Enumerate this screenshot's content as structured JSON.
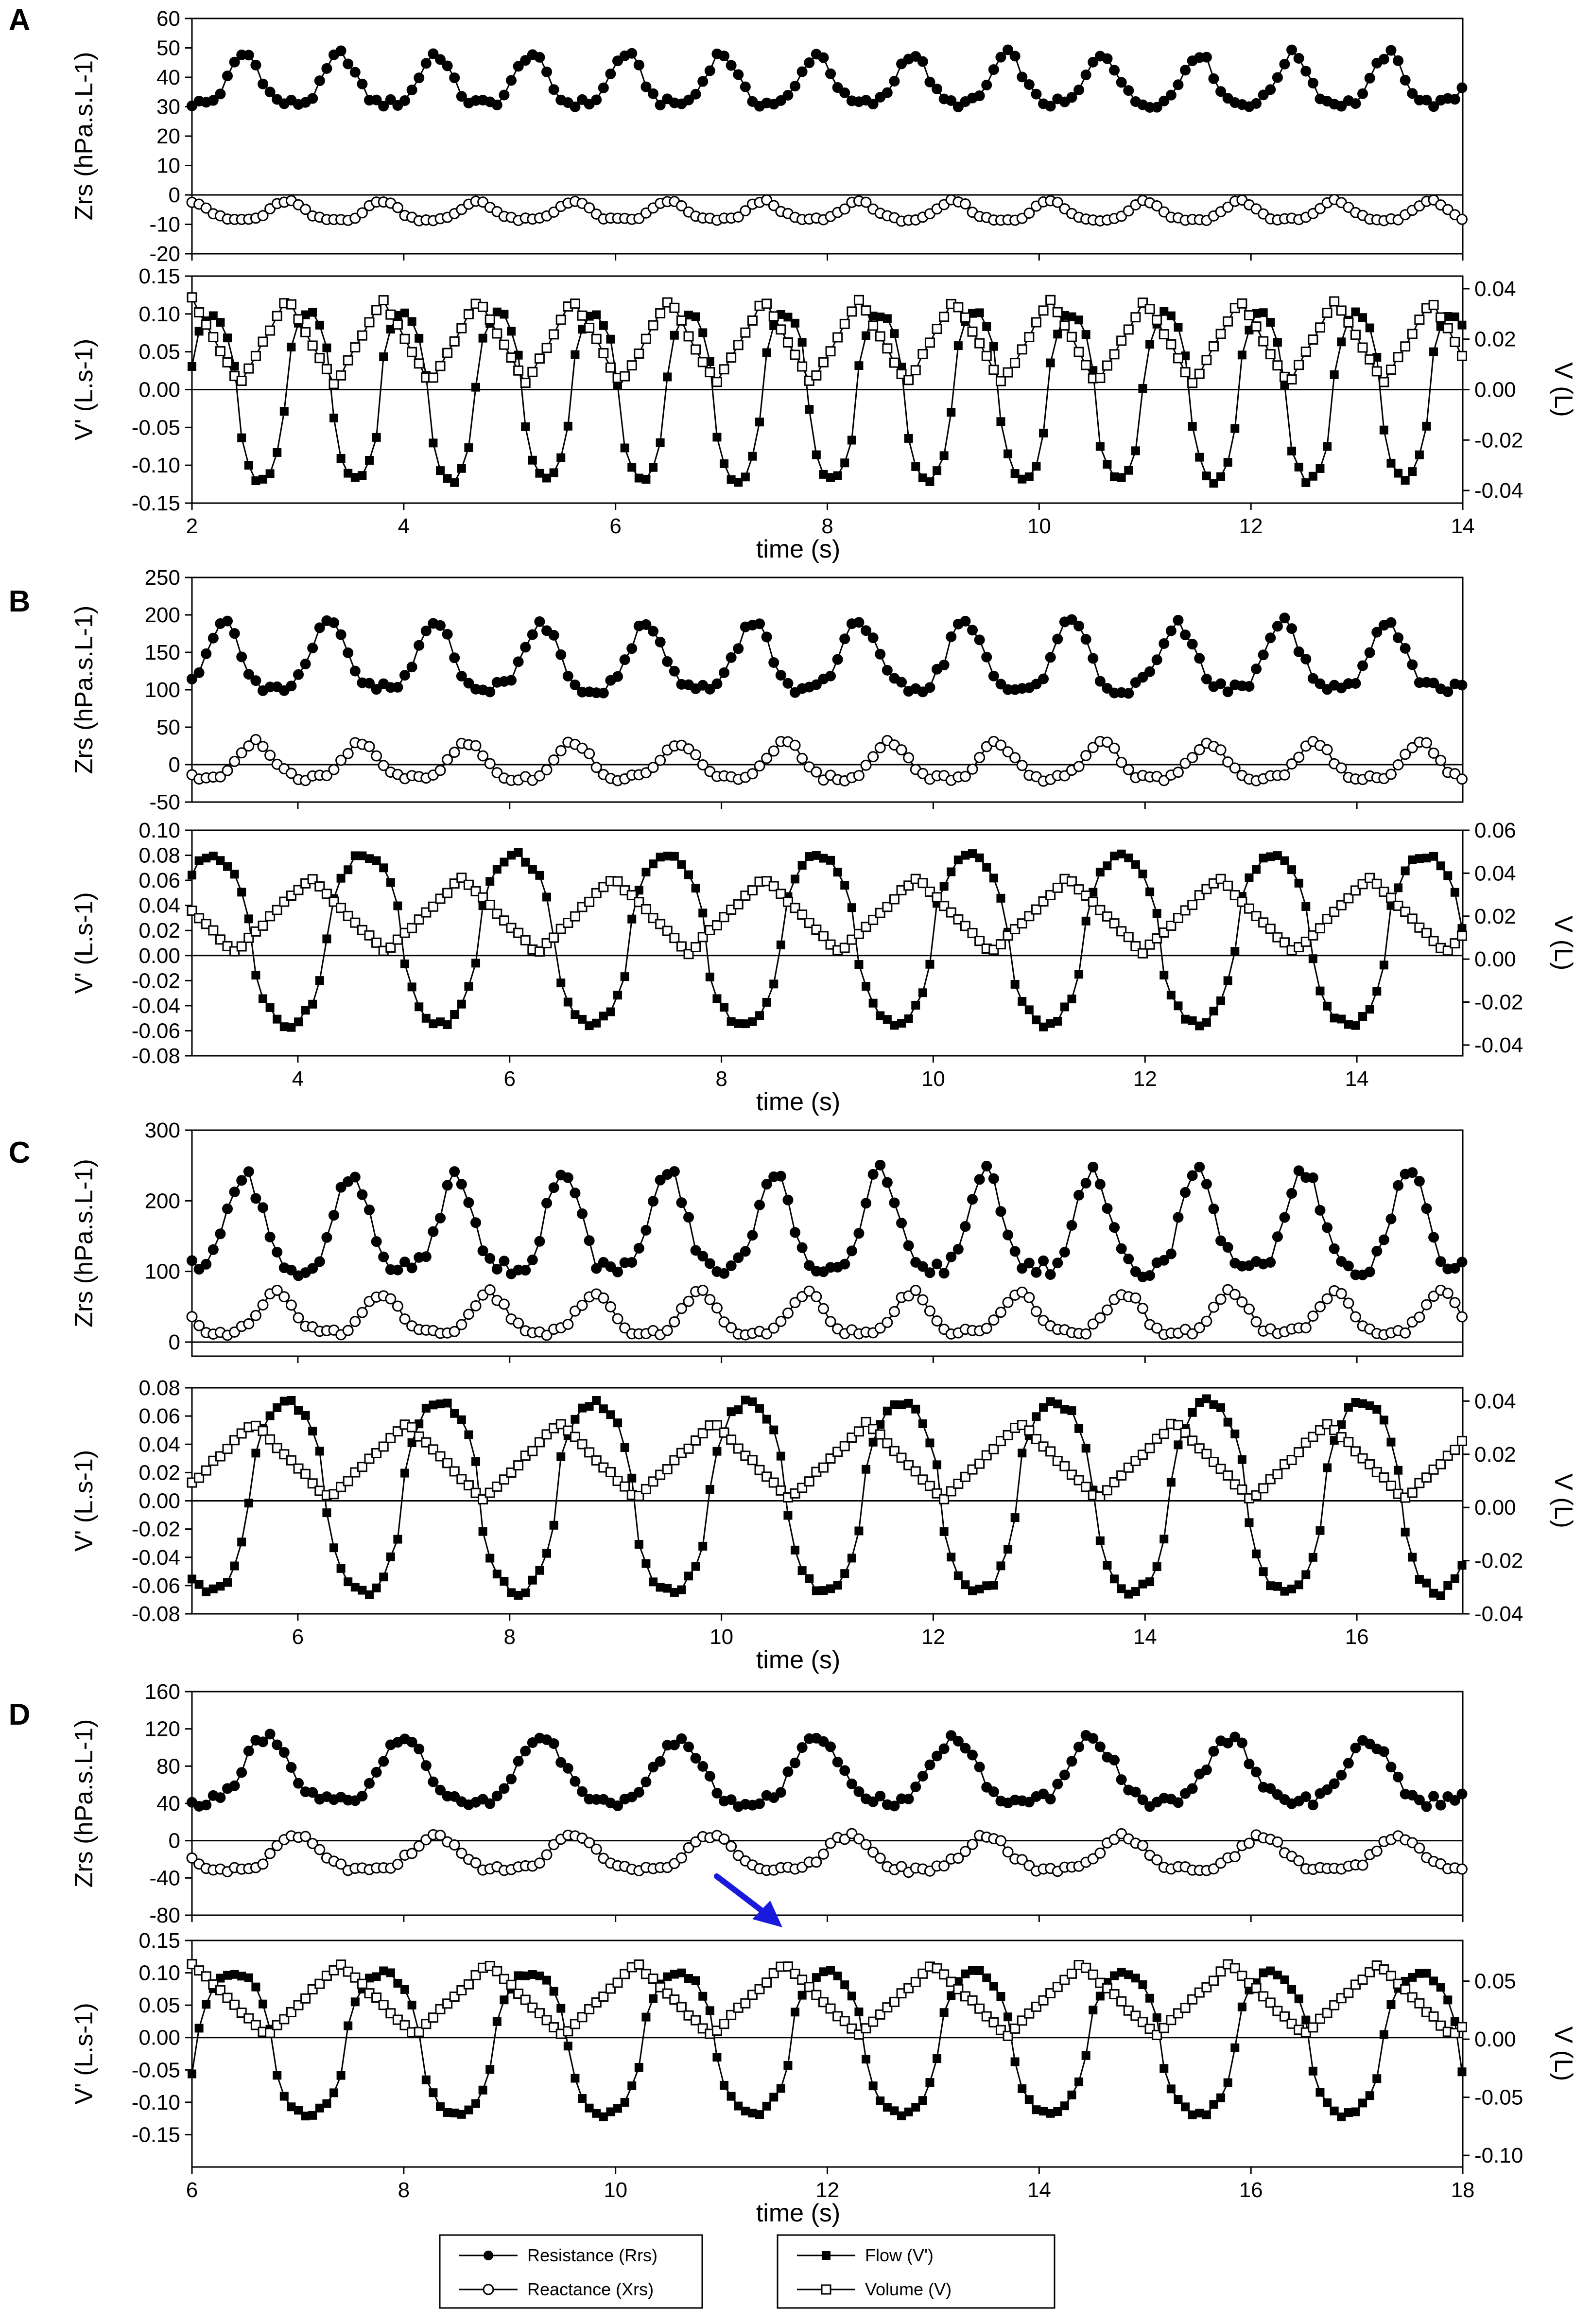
{
  "figure": {
    "panel_letters": [
      "A",
      "B",
      "C",
      "D"
    ]
  },
  "labels": {
    "zrs_ylabel": "Zrs (hPa.s.L-1)",
    "flow_ylabel": "V' (L.s-1)",
    "volume_ylabel": "V (L)",
    "xlabel": "time (s)"
  },
  "legend": {
    "resistance": "Resistance (Rrs)",
    "reactance": "Reactance (Xrs)",
    "flow": "Flow (V')",
    "volume": "Volume (V)"
  },
  "annotation": {
    "type": "arrow",
    "color": "#1a1adc",
    "panel": "D",
    "points_to_time_s": 11.5
  },
  "chart_data": [
    {
      "panel": "A",
      "type": "line",
      "subplot": "impedance",
      "xlim": [
        2,
        14
      ],
      "xticks": [
        2,
        4,
        6,
        8,
        10,
        12,
        14
      ],
      "ylim": [
        -20,
        60
      ],
      "yticks": [
        -20,
        -10,
        0,
        10,
        20,
        30,
        40,
        50,
        60
      ],
      "ylabel": "Zrs (hPa.s.L-1)",
      "zero_line": true,
      "series": [
        {
          "name": "Resistance (Rrs)",
          "marker": "filled-circle",
          "period_s": 0.9,
          "phase_s": 2.5,
          "min": 27,
          "max": 48
        },
        {
          "name": "Reactance (Xrs)",
          "marker": "open-circle",
          "period_s": 0.9,
          "phase_s": 2.9,
          "min": -10,
          "max": -2
        }
      ]
    },
    {
      "panel": "A",
      "type": "line",
      "subplot": "flow-volume",
      "xlim": [
        2,
        14
      ],
      "xticks": [
        2,
        4,
        6,
        8,
        10,
        12,
        14
      ],
      "xlabel": "time (s)",
      "ylim": [
        -0.15,
        0.15
      ],
      "yticks": [
        -0.15,
        -0.1,
        -0.05,
        0.0,
        0.05,
        0.1,
        0.15
      ],
      "y2lim": [
        -0.045,
        0.045
      ],
      "y2ticks": [
        -0.04,
        -0.02,
        0.0,
        0.02,
        0.04
      ],
      "ylabel": "V' (L.s-1)",
      "y2label": "V (L)",
      "zero_line": true,
      "series": [
        {
          "name": "Flow (V')",
          "axis": "left",
          "marker": "filled-square",
          "period_s": 0.9,
          "phase_s": 2.2,
          "min": -0.12,
          "max": 0.1
        },
        {
          "name": "Volume (V)",
          "axis": "right",
          "marker": "open-square",
          "period_s": 0.9,
          "phase_s": 2.45,
          "min": 0.002,
          "max": 0.036
        }
      ]
    },
    {
      "panel": "B",
      "type": "line",
      "subplot": "impedance",
      "xlim": [
        3,
        15
      ],
      "xticks": [
        4,
        6,
        8,
        10,
        12,
        14
      ],
      "ylim": [
        -50,
        250
      ],
      "yticks": [
        -50,
        0,
        50,
        100,
        150,
        200,
        250
      ],
      "ylabel": "Zrs (hPa.s.L-1)",
      "zero_line": true,
      "series": [
        {
          "name": "Resistance (Rrs)",
          "marker": "filled-circle",
          "period_s": 1.0,
          "phase_s": 3.3,
          "min": 80,
          "max": 190
        },
        {
          "name": "Reactance (Xrs)",
          "marker": "open-circle",
          "period_s": 1.0,
          "phase_s": 3.6,
          "min": -30,
          "max": 30
        }
      ]
    },
    {
      "panel": "B",
      "type": "line",
      "subplot": "flow-volume",
      "xlim": [
        3,
        15
      ],
      "xticks": [
        4,
        6,
        8,
        10,
        12,
        14
      ],
      "xlabel": "time (s)",
      "ylim": [
        -0.08,
        0.1
      ],
      "yticks": [
        -0.08,
        -0.06,
        -0.04,
        -0.02,
        0.0,
        0.02,
        0.04,
        0.06,
        0.08,
        0.1
      ],
      "y2lim": [
        -0.045,
        0.06
      ],
      "y2ticks": [
        -0.04,
        -0.02,
        0.0,
        0.02,
        0.04,
        0.06
      ],
      "ylabel": "V' (L.s-1)",
      "y2label": "V (L)",
      "zero_line": true,
      "series": [
        {
          "name": "Flow (V')",
          "axis": "left",
          "marker": "filled-square",
          "period_s": 1.43,
          "phase_s": 3.2,
          "min": -0.055,
          "max": 0.08
        },
        {
          "name": "Volume (V)",
          "axis": "right",
          "marker": "open-square",
          "period_s": 1.43,
          "phase_s": 3.4,
          "min": 0.003,
          "max": 0.038
        }
      ]
    },
    {
      "panel": "C",
      "type": "line",
      "subplot": "impedance",
      "xlim": [
        5,
        17
      ],
      "xticks": [
        6,
        8,
        10,
        12,
        14,
        16
      ],
      "ylim": [
        -20,
        300
      ],
      "yticks": [
        0,
        100,
        200,
        300
      ],
      "ylabel": "Zrs (hPa.s.L-1)",
      "zero_line": true,
      "series": [
        {
          "name": "Resistance (Rrs)",
          "marker": "filled-circle",
          "period_s": 1.0,
          "phase_s": 5.5,
          "min": 70,
          "max": 240
        },
        {
          "name": "Reactance (Xrs)",
          "marker": "open-circle",
          "period_s": 1.0,
          "phase_s": 5.8,
          "min": 0,
          "max": 70
        }
      ]
    },
    {
      "panel": "C",
      "type": "line",
      "subplot": "flow-volume",
      "xlim": [
        5,
        17
      ],
      "xticks": [
        6,
        8,
        10,
        12,
        14,
        16
      ],
      "xlabel": "time (s)",
      "ylim": [
        -0.08,
        0.08
      ],
      "yticks": [
        -0.08,
        -0.06,
        -0.04,
        -0.02,
        0.0,
        0.02,
        0.04,
        0.06,
        0.08
      ],
      "y2lim": [
        -0.04,
        0.045
      ],
      "y2ticks": [
        -0.04,
        -0.02,
        0.0,
        0.02,
        0.04
      ],
      "ylabel": "V' (L.s-1)",
      "y2label": "V (L)",
      "zero_line": true,
      "series": [
        {
          "name": "Flow (V')",
          "axis": "left",
          "marker": "filled-square",
          "period_s": 1.45,
          "phase_s": 5.9,
          "min": -0.065,
          "max": 0.07
        },
        {
          "name": "Volume (V)",
          "axis": "right",
          "marker": "open-square",
          "period_s": 1.45,
          "phase_s": 6.3,
          "min": 0.003,
          "max": 0.032
        }
      ]
    },
    {
      "panel": "D",
      "type": "line",
      "subplot": "impedance",
      "xlim": [
        6,
        18
      ],
      "xticks": [
        6,
        8,
        10,
        12,
        14,
        16,
        18
      ],
      "ylim": [
        -80,
        160
      ],
      "yticks": [
        -80,
        -40,
        0,
        40,
        80,
        120,
        160
      ],
      "ylabel": "Zrs (hPa.s.L-1)",
      "zero_line": true,
      "series": [
        {
          "name": "Resistance (Rrs)",
          "marker": "filled-circle",
          "period_s": 1.3,
          "phase_s": 6.7,
          "min": 25,
          "max": 110
        },
        {
          "name": "Reactance (Xrs)",
          "marker": "open-circle",
          "period_s": 1.3,
          "phase_s": 7.0,
          "min": -40,
          "max": 5
        }
      ]
    },
    {
      "panel": "D",
      "type": "line",
      "subplot": "flow-volume",
      "xlim": [
        6,
        18
      ],
      "xticks": [
        6,
        8,
        10,
        12,
        14,
        16,
        18
      ],
      "xlabel": "time (s)",
      "ylim": [
        -0.2,
        0.15
      ],
      "yticks": [
        -0.15,
        -0.1,
        -0.05,
        0.0,
        0.05,
        0.1,
        0.15
      ],
      "y2lim": [
        -0.11,
        0.085
      ],
      "y2ticks": [
        -0.1,
        -0.05,
        0.0,
        0.05
      ],
      "ylabel": "V' (L.s-1)",
      "y2label": "V (L)",
      "zero_line": true,
      "series": [
        {
          "name": "Flow (V')",
          "axis": "left",
          "marker": "filled-square",
          "period_s": 1.4,
          "phase_s": 6.4,
          "min": -0.12,
          "max": 0.1
        },
        {
          "name": "Volume (V)",
          "axis": "right",
          "marker": "open-square",
          "period_s": 1.4,
          "phase_s": 6.7,
          "min": 0.003,
          "max": 0.065
        }
      ]
    }
  ]
}
